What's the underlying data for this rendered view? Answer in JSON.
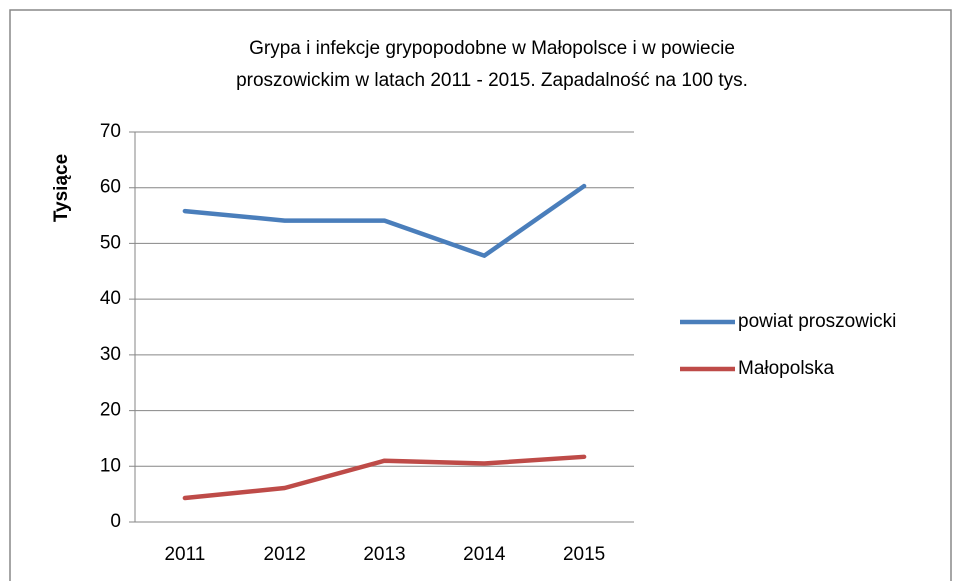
{
  "chart_data": {
    "type": "line",
    "title": [
      "Grypa i infekcje grypopodobne w Małopolsce i w powiecie",
      "proszowickim w latach 2011 - 2015. Zapadalność na 100 tys."
    ],
    "y_label": "Tysiące",
    "categories": [
      "2011",
      "2012",
      "2013",
      "2014",
      "2015"
    ],
    "series": [
      {
        "name": "powiat proszowicki",
        "color": "#4a7ebb",
        "values": [
          55.8,
          54.1,
          54.1,
          47.8,
          60.3
        ]
      },
      {
        "name": "Małopolska",
        "color": "#be4b48",
        "values": [
          4.3,
          6.1,
          11.0,
          10.5,
          11.7
        ]
      }
    ],
    "ylim": [
      0,
      70
    ],
    "yticks": [
      0,
      10,
      20,
      30,
      40,
      50,
      60,
      70
    ],
    "grid": true,
    "legend": "right"
  }
}
